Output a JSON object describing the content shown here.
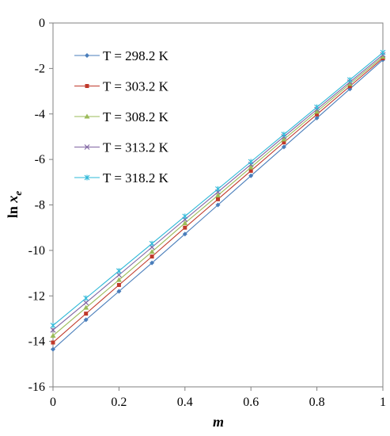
{
  "chart_data": {
    "type": "line",
    "xlabel": "m",
    "ylabel": {
      "main": "ln ",
      "var": "x",
      "sub": "e"
    },
    "xlim": [
      0,
      1
    ],
    "ylim": [
      -16,
      0
    ],
    "xticks": [
      "0",
      "0.2",
      "0.4",
      "0.6",
      "0.8",
      "1"
    ],
    "yticks": [
      "0",
      "-2",
      "-4",
      "-6",
      "-8",
      "-10",
      "-12",
      "-14",
      "-16"
    ],
    "x": [
      0,
      0.1,
      0.2,
      0.3,
      0.4,
      0.5,
      0.6,
      0.7,
      0.8,
      0.9,
      1.0
    ],
    "legend_position": "top-left",
    "grid": false,
    "series": [
      {
        "name": "T = 298.2 K",
        "color": "#4a7ebb",
        "marker": "diamond",
        "values": [
          -14.35,
          -13.05,
          -11.8,
          -10.55,
          -9.28,
          -8.0,
          -6.72,
          -5.45,
          -4.18,
          -2.9,
          -1.62
        ]
      },
      {
        "name": "T = 303.2 K",
        "color": "#c0392b",
        "marker": "square",
        "values": [
          -14.05,
          -12.78,
          -11.52,
          -10.27,
          -9.0,
          -7.75,
          -6.5,
          -5.25,
          -4.02,
          -2.78,
          -1.55
        ]
      },
      {
        "name": "T = 308.2 K",
        "color": "#9bbb59",
        "marker": "triangle",
        "values": [
          -13.75,
          -12.52,
          -11.3,
          -10.06,
          -8.8,
          -7.58,
          -6.35,
          -5.12,
          -3.9,
          -2.68,
          -1.48
        ]
      },
      {
        "name": "T = 313.2 K",
        "color": "#8064a2",
        "marker": "x",
        "values": [
          -13.5,
          -12.3,
          -11.08,
          -9.86,
          -8.64,
          -7.43,
          -6.22,
          -5.0,
          -3.8,
          -2.6,
          -1.4
        ]
      },
      {
        "name": "T = 318.2 K",
        "color": "#2eb8d8",
        "marker": "star",
        "values": [
          -13.3,
          -12.1,
          -10.9,
          -9.7,
          -8.5,
          -7.3,
          -6.1,
          -4.9,
          -3.7,
          -2.5,
          -1.3
        ]
      }
    ]
  }
}
